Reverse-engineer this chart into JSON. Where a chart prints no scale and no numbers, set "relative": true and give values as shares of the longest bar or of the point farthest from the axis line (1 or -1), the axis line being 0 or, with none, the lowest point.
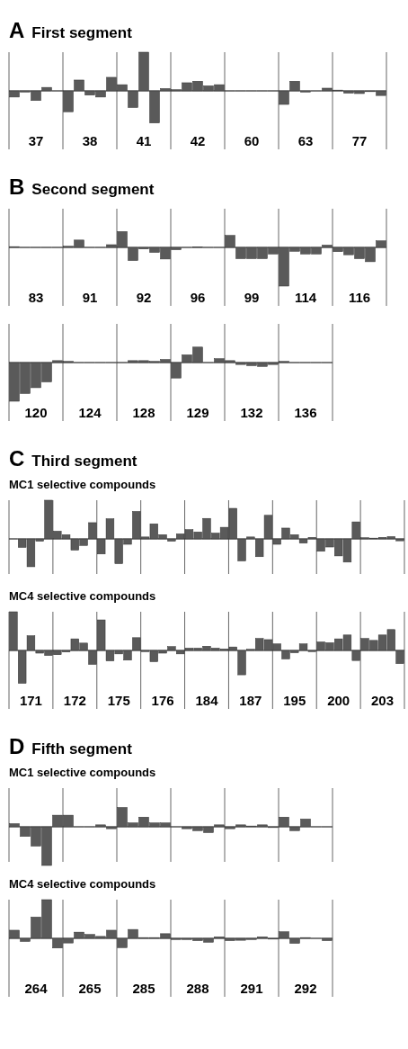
{
  "chart_data": [
    {
      "type": "bar",
      "title": "First segment",
      "annotations": [
        "A"
      ],
      "relative": true,
      "categories": [
        "37",
        "38",
        "41",
        "42",
        "60",
        "63",
        "77"
      ],
      "series": [
        {
          "color": "#5a5a5a",
          "values": [
            -0.16,
            -0.54,
            0.16,
            0.03,
            0,
            -0.35,
            0.02
          ]
        },
        {
          "color": "#5a5a5a",
          "values": [
            -0.03,
            0.28,
            -0.43,
            0.21,
            0,
            0.25,
            -0.06
          ]
        },
        {
          "color": "#5a5a5a",
          "values": [
            -0.25,
            -0.11,
            1.0,
            0.25,
            0,
            -0.03,
            -0.07
          ]
        },
        {
          "color": "#5a5a5a",
          "values": [
            0.09,
            -0.16,
            -0.83,
            0.13,
            0,
            0,
            -0.02
          ]
        },
        {
          "color": "#5a5a5a",
          "values": [
            0,
            0.35,
            0.06,
            0.16,
            0,
            0.07,
            -0.12
          ]
        }
      ]
    },
    {
      "type": "bar",
      "title": "Second segment",
      "annotations": [
        "B"
      ],
      "relative": true,
      "categories": [
        "83",
        "91",
        "92",
        "96",
        "99",
        "114",
        "116"
      ],
      "series": [
        {
          "color": "#5a5a5a",
          "values": [
            0.02,
            0.03,
            0.41,
            -0.06,
            0.31,
            -1.0,
            -0.11
          ]
        },
        {
          "color": "#5a5a5a",
          "values": [
            0,
            0.19,
            -0.34,
            0,
            -0.29,
            -0.1,
            -0.19
          ]
        },
        {
          "color": "#5a5a5a",
          "values": [
            0,
            0,
            -0.04,
            0.01,
            -0.29,
            -0.17,
            -0.29
          ]
        },
        {
          "color": "#5a5a5a",
          "values": [
            0,
            0,
            -0.13,
            0,
            -0.29,
            -0.17,
            -0.37
          ]
        },
        {
          "color": "#5a5a5a",
          "values": [
            0,
            0.07,
            -0.3,
            0,
            -0.17,
            0.06,
            0.17
          ]
        }
      ]
    },
    {
      "type": "bar",
      "relative": true,
      "categories": [
        "120",
        "124",
        "128",
        "129",
        "132",
        "136"
      ],
      "series": [
        {
          "color": "#5a5a5a",
          "values": [
            -1.0,
            0.03,
            0,
            -0.4,
            0.05,
            0.03
          ]
        },
        {
          "color": "#5a5a5a",
          "values": [
            -0.8,
            0,
            0.05,
            0.2,
            -0.05,
            0
          ]
        },
        {
          "color": "#5a5a5a",
          "values": [
            -0.65,
            0,
            0.05,
            0.4,
            -0.08,
            0
          ]
        },
        {
          "color": "#5a5a5a",
          "values": [
            -0.5,
            0,
            0.03,
            0,
            -0.1,
            0
          ]
        },
        {
          "color": "#5a5a5a",
          "values": [
            0.05,
            0,
            0.08,
            0.1,
            -0.05,
            0
          ]
        }
      ]
    },
    {
      "type": "bar",
      "title": "Third segment",
      "subtitle": "MC1 selective compounds",
      "annotations": [
        "C"
      ],
      "relative": true,
      "tick_labels": false,
      "categories": [
        "171",
        "172",
        "175",
        "176",
        "184",
        "187",
        "195",
        "200",
        "203"
      ],
      "series": [
        {
          "color": "#5a5a5a",
          "values": [
            0,
            0.2,
            -0.39,
            0.05,
            0.24,
            0.79,
            -0.14,
            -0.32,
            0.03
          ]
        },
        {
          "color": "#5a5a5a",
          "values": [
            -0.22,
            0.11,
            0.52,
            0.39,
            0.18,
            -0.57,
            0.28,
            -0.21,
            0.02
          ]
        },
        {
          "color": "#5a5a5a",
          "values": [
            -0.72,
            -0.29,
            -0.64,
            0.11,
            0.53,
            0.05,
            0.11,
            -0.44,
            0.04
          ]
        },
        {
          "color": "#5a5a5a",
          "values": [
            -0.06,
            -0.17,
            -0.14,
            -0.06,
            0.15,
            -0.46,
            -0.11,
            -0.6,
            0.06
          ]
        },
        {
          "color": "#5a5a5a",
          "values": [
            1.0,
            0.42,
            0.71,
            0.13,
            0.3,
            0.61,
            0.04,
            0.44,
            -0.05
          ]
        }
      ]
    },
    {
      "type": "bar",
      "title": "MC4 selective compounds",
      "relative": true,
      "categories": [
        "171",
        "172",
        "175",
        "176",
        "184",
        "187",
        "195",
        "200",
        "203"
      ],
      "series": [
        {
          "color": "#5a5a5a",
          "values": [
            1.0,
            -0.11,
            0.79,
            -0.03,
            0.06,
            0.09,
            0.17,
            0.22,
            0.31
          ]
        },
        {
          "color": "#5a5a5a",
          "values": [
            -0.85,
            -0.04,
            -0.27,
            -0.29,
            0.06,
            -0.63,
            -0.22,
            0.2,
            0.26
          ]
        },
        {
          "color": "#5a5a5a",
          "values": [
            0.38,
            0.3,
            -0.09,
            -0.07,
            0.11,
            0.03,
            -0.06,
            0.3,
            0.4
          ]
        },
        {
          "color": "#5a5a5a",
          "values": [
            -0.07,
            0.19,
            -0.25,
            0.1,
            0.06,
            0.31,
            0.17,
            0.4,
            0.54
          ]
        },
        {
          "color": "#5a5a5a",
          "values": [
            -0.13,
            -0.36,
            0.33,
            -0.09,
            0.04,
            0.28,
            -0.03,
            -0.26,
            -0.34
          ]
        }
      ]
    },
    {
      "type": "bar",
      "title": "Fifth segment",
      "subtitle": "MC1 selective compounds",
      "annotations": [
        "D"
      ],
      "relative": true,
      "tick_labels": false,
      "categories": [
        "264",
        "265",
        "285",
        "288",
        "291",
        "292"
      ],
      "series": [
        {
          "color": "#5a5a5a",
          "values": [
            0.08,
            0.3,
            0.5,
            0,
            -0.05,
            0.25
          ]
        },
        {
          "color": "#5a5a5a",
          "values": [
            -0.25,
            0,
            0.1,
            -0.05,
            0.05,
            -0.1
          ]
        },
        {
          "color": "#5a5a5a",
          "values": [
            -0.5,
            0,
            0.25,
            -0.1,
            0.02,
            0.2
          ]
        },
        {
          "color": "#5a5a5a",
          "values": [
            -1.0,
            0.05,
            0.1,
            -0.15,
            0.05,
            0
          ]
        },
        {
          "color": "#5a5a5a",
          "values": [
            0.3,
            -0.05,
            0.1,
            0.05,
            -0.02,
            0
          ]
        }
      ]
    },
    {
      "type": "bar",
      "title": "MC4 selective compounds",
      "relative": true,
      "categories": [
        "264",
        "265",
        "285",
        "288",
        "291",
        "292"
      ],
      "series": [
        {
          "color": "#5a5a5a",
          "values": [
            0.21,
            -0.12,
            -0.24,
            -0.03,
            -0.06,
            0.17
          ]
        },
        {
          "color": "#5a5a5a",
          "values": [
            -0.08,
            0.16,
            0.23,
            -0.03,
            -0.05,
            -0.13
          ]
        },
        {
          "color": "#5a5a5a",
          "values": [
            0.55,
            0.1,
            0.02,
            -0.06,
            -0.03,
            0.02
          ]
        },
        {
          "color": "#5a5a5a",
          "values": [
            1.0,
            0.05,
            0.02,
            -0.1,
            0.04,
            0
          ]
        },
        {
          "color": "#5a5a5a",
          "values": [
            -0.25,
            0.21,
            0.12,
            0.04,
            -0.02,
            -0.06
          ]
        }
      ]
    }
  ]
}
